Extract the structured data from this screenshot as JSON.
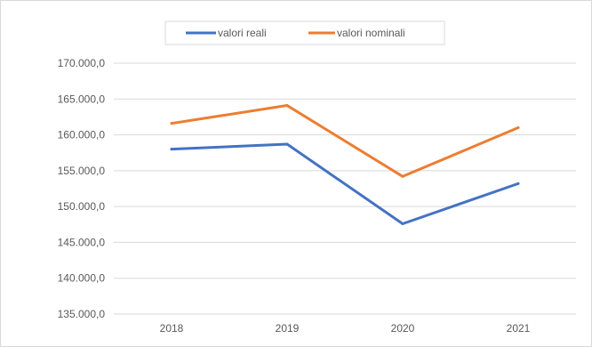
{
  "chart_data": {
    "type": "line",
    "categories": [
      "2018",
      "2019",
      "2020",
      "2021"
    ],
    "series": [
      {
        "name": "valori reali",
        "color": "#4472c4",
        "values": [
          158000,
          158700,
          147600,
          153200
        ]
      },
      {
        "name": "valori nominali",
        "color": "#ed7d31",
        "values": [
          161600,
          164100,
          154200,
          161000
        ]
      }
    ],
    "ylim": [
      135000,
      170000
    ],
    "yticks": [
      {
        "value": 135000,
        "label": "135.000,0"
      },
      {
        "value": 140000,
        "label": "140.000,0"
      },
      {
        "value": 145000,
        "label": "145.000,0"
      },
      {
        "value": 150000,
        "label": "150.000,0"
      },
      {
        "value": 155000,
        "label": "155.000,0"
      },
      {
        "value": 160000,
        "label": "160.000,0"
      },
      {
        "value": 165000,
        "label": "165.000,0"
      },
      {
        "value": 170000,
        "label": "170.000,0"
      }
    ],
    "grid": true,
    "legend_position": "top"
  }
}
